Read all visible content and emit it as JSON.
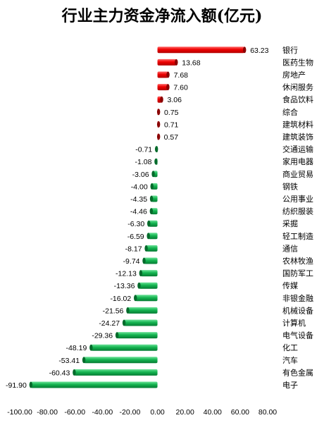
{
  "chart_data": {
    "type": "bar",
    "orientation": "horizontal",
    "title": "行业主力资金净流入额(亿元)",
    "categories": [
      "银行",
      "医药生物",
      "房地产",
      "休闲服务",
      "食品饮料",
      "综合",
      "建筑材料",
      "建筑装饰",
      "交通运输",
      "家用电器",
      "商业贸易",
      "钢铁",
      "公用事业",
      "纺织服装",
      "采掘",
      "轻工制造",
      "通信",
      "农林牧渔",
      "国防军工",
      "传媒",
      "非银金融",
      "机械设备",
      "计算机",
      "电气设备",
      "化工",
      "汽车",
      "有色金属",
      "电子"
    ],
    "values": [
      63.23,
      13.68,
      7.68,
      7.6,
      3.06,
      0.75,
      0.71,
      0.57,
      -0.71,
      -1.08,
      -3.06,
      -4.0,
      -4.35,
      -4.46,
      -6.3,
      -6.59,
      -8.17,
      -9.74,
      -12.13,
      -13.36,
      -16.02,
      -21.56,
      -24.27,
      -29.36,
      -48.19,
      -53.41,
      -60.43,
      -91.9
    ],
    "value_labels": [
      "63.23",
      "13.68",
      "7.68",
      "7.60",
      "3.06",
      "0.75",
      "0.71",
      "0.57",
      "-0.71",
      "-1.08",
      "-3.06",
      "-4.00",
      "-4.35",
      "-4.46",
      "-6.30",
      "-6.59",
      "-8.17",
      "-9.74",
      "-12.13",
      "-13.36",
      "-16.02",
      "-21.56",
      "-24.27",
      "-29.36",
      "-48.19",
      "-53.41",
      "-60.43",
      "-91.90"
    ],
    "xlim": [
      -100,
      80
    ],
    "x_ticks": [
      -100,
      -80,
      -60,
      -40,
      -20,
      0,
      20,
      40,
      60,
      80
    ],
    "x_tick_labels": [
      "-100.00",
      "-80.00",
      "-60.00",
      "-40.00",
      "-20.00",
      "0.00",
      "20.00",
      "40.00",
      "60.00",
      "80.00"
    ],
    "grid": false,
    "legend": "none",
    "colors": {
      "positive": "#ff0000",
      "negative": "#00a650"
    }
  }
}
